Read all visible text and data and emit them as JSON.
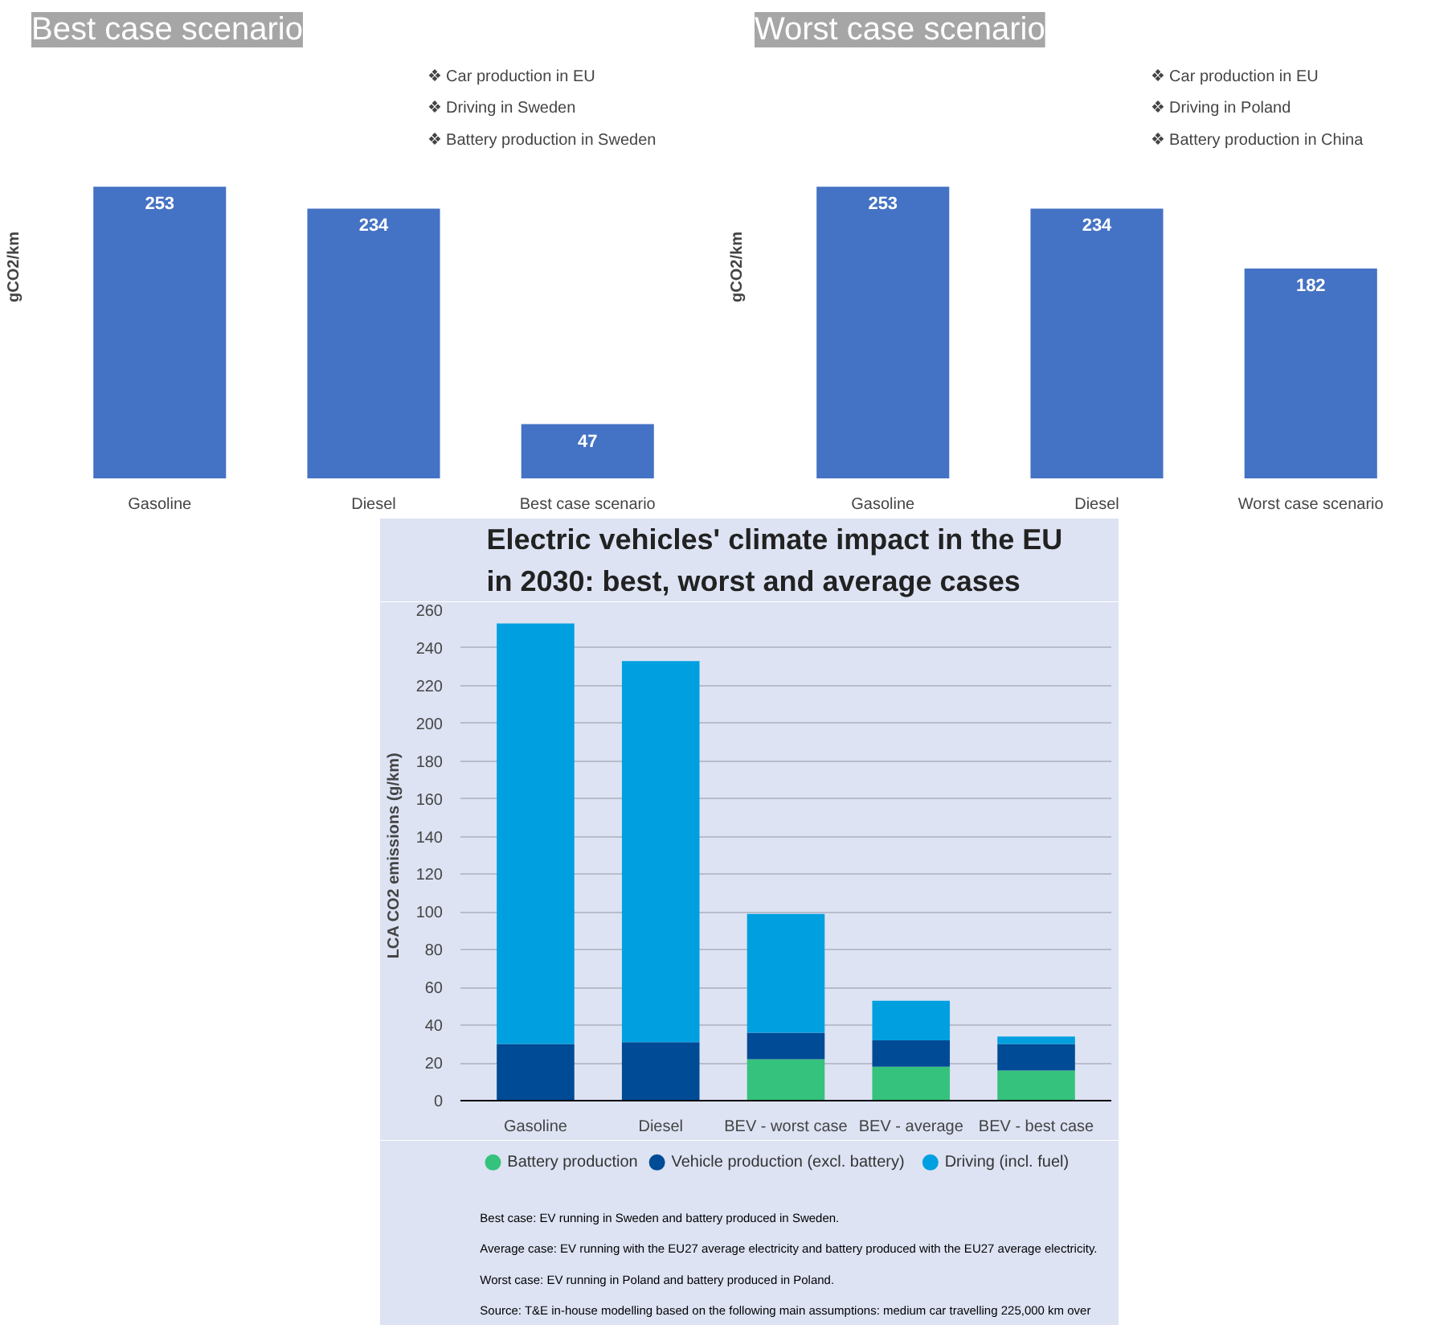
{
  "chart_data": [
    {
      "type": "bar",
      "title": "Best case scenario",
      "ylabel": "gCO2/km",
      "categories": [
        "Gasoline",
        "Diesel",
        "Best case scenario"
      ],
      "values": [
        253,
        234,
        47
      ],
      "color": "#4472c4",
      "data_labels": true,
      "tick_labels": "x",
      "grid": false,
      "annotations": [
        "❖ Car production in EU",
        "❖ Driving in Sweden",
        "❖ Battery production in Sweden"
      ]
    },
    {
      "type": "bar",
      "title": "Worst case scenario",
      "ylabel": "gCO2/km",
      "categories": [
        "Gasoline",
        "Diesel",
        "Worst case scenario"
      ],
      "values": [
        253,
        234,
        182
      ],
      "color": "#4472c4",
      "data_labels": true,
      "tick_labels": "x",
      "grid": false,
      "annotations": [
        "❖ Car production in EU",
        "❖ Driving in Poland",
        "❖ Battery production in China"
      ]
    },
    {
      "type": "bar",
      "title": "Electric vehicles' climate impact in the EU\nin 2030: best, worst and average cases",
      "ylabel": "LCA CO2 emissions (g/km)",
      "categories": [
        "Gasoline",
        "Diesel",
        "BEV - worst case",
        "BEV - average",
        "BEV - best case"
      ],
      "stacked": true,
      "legend": "bottom",
      "grid": "y",
      "ylim": [
        0,
        260
      ],
      "yticks": [
        0,
        20,
        40,
        60,
        80,
        100,
        120,
        140,
        160,
        180,
        200,
        220,
        240,
        260
      ],
      "series": [
        {
          "name": "Battery production",
          "color": "#35c27c",
          "values": [
            null,
            null,
            22,
            18,
            16
          ]
        },
        {
          "name": "Vehicle production (excl. battery)",
          "color": "#004b96",
          "values": [
            30,
            31,
            14,
            14,
            14
          ]
        },
        {
          "name": "Driving (incl. fuel)",
          "color": "#00a0e0",
          "values": [
            223,
            202,
            63,
            21,
            4
          ]
        }
      ],
      "annotations": [
        "Best case: EV running in Sweden and battery produced in Sweden.",
        "Average case: EV running with the EU27 average electricity and battery produced with the EU27 average electricity.",
        "Worst case: EV running in Poland and battery produced in Poland.",
        "Source: T&E in-house modelling based on the following main assumptions: medium car travelling 225,000 km over"
      ]
    }
  ]
}
